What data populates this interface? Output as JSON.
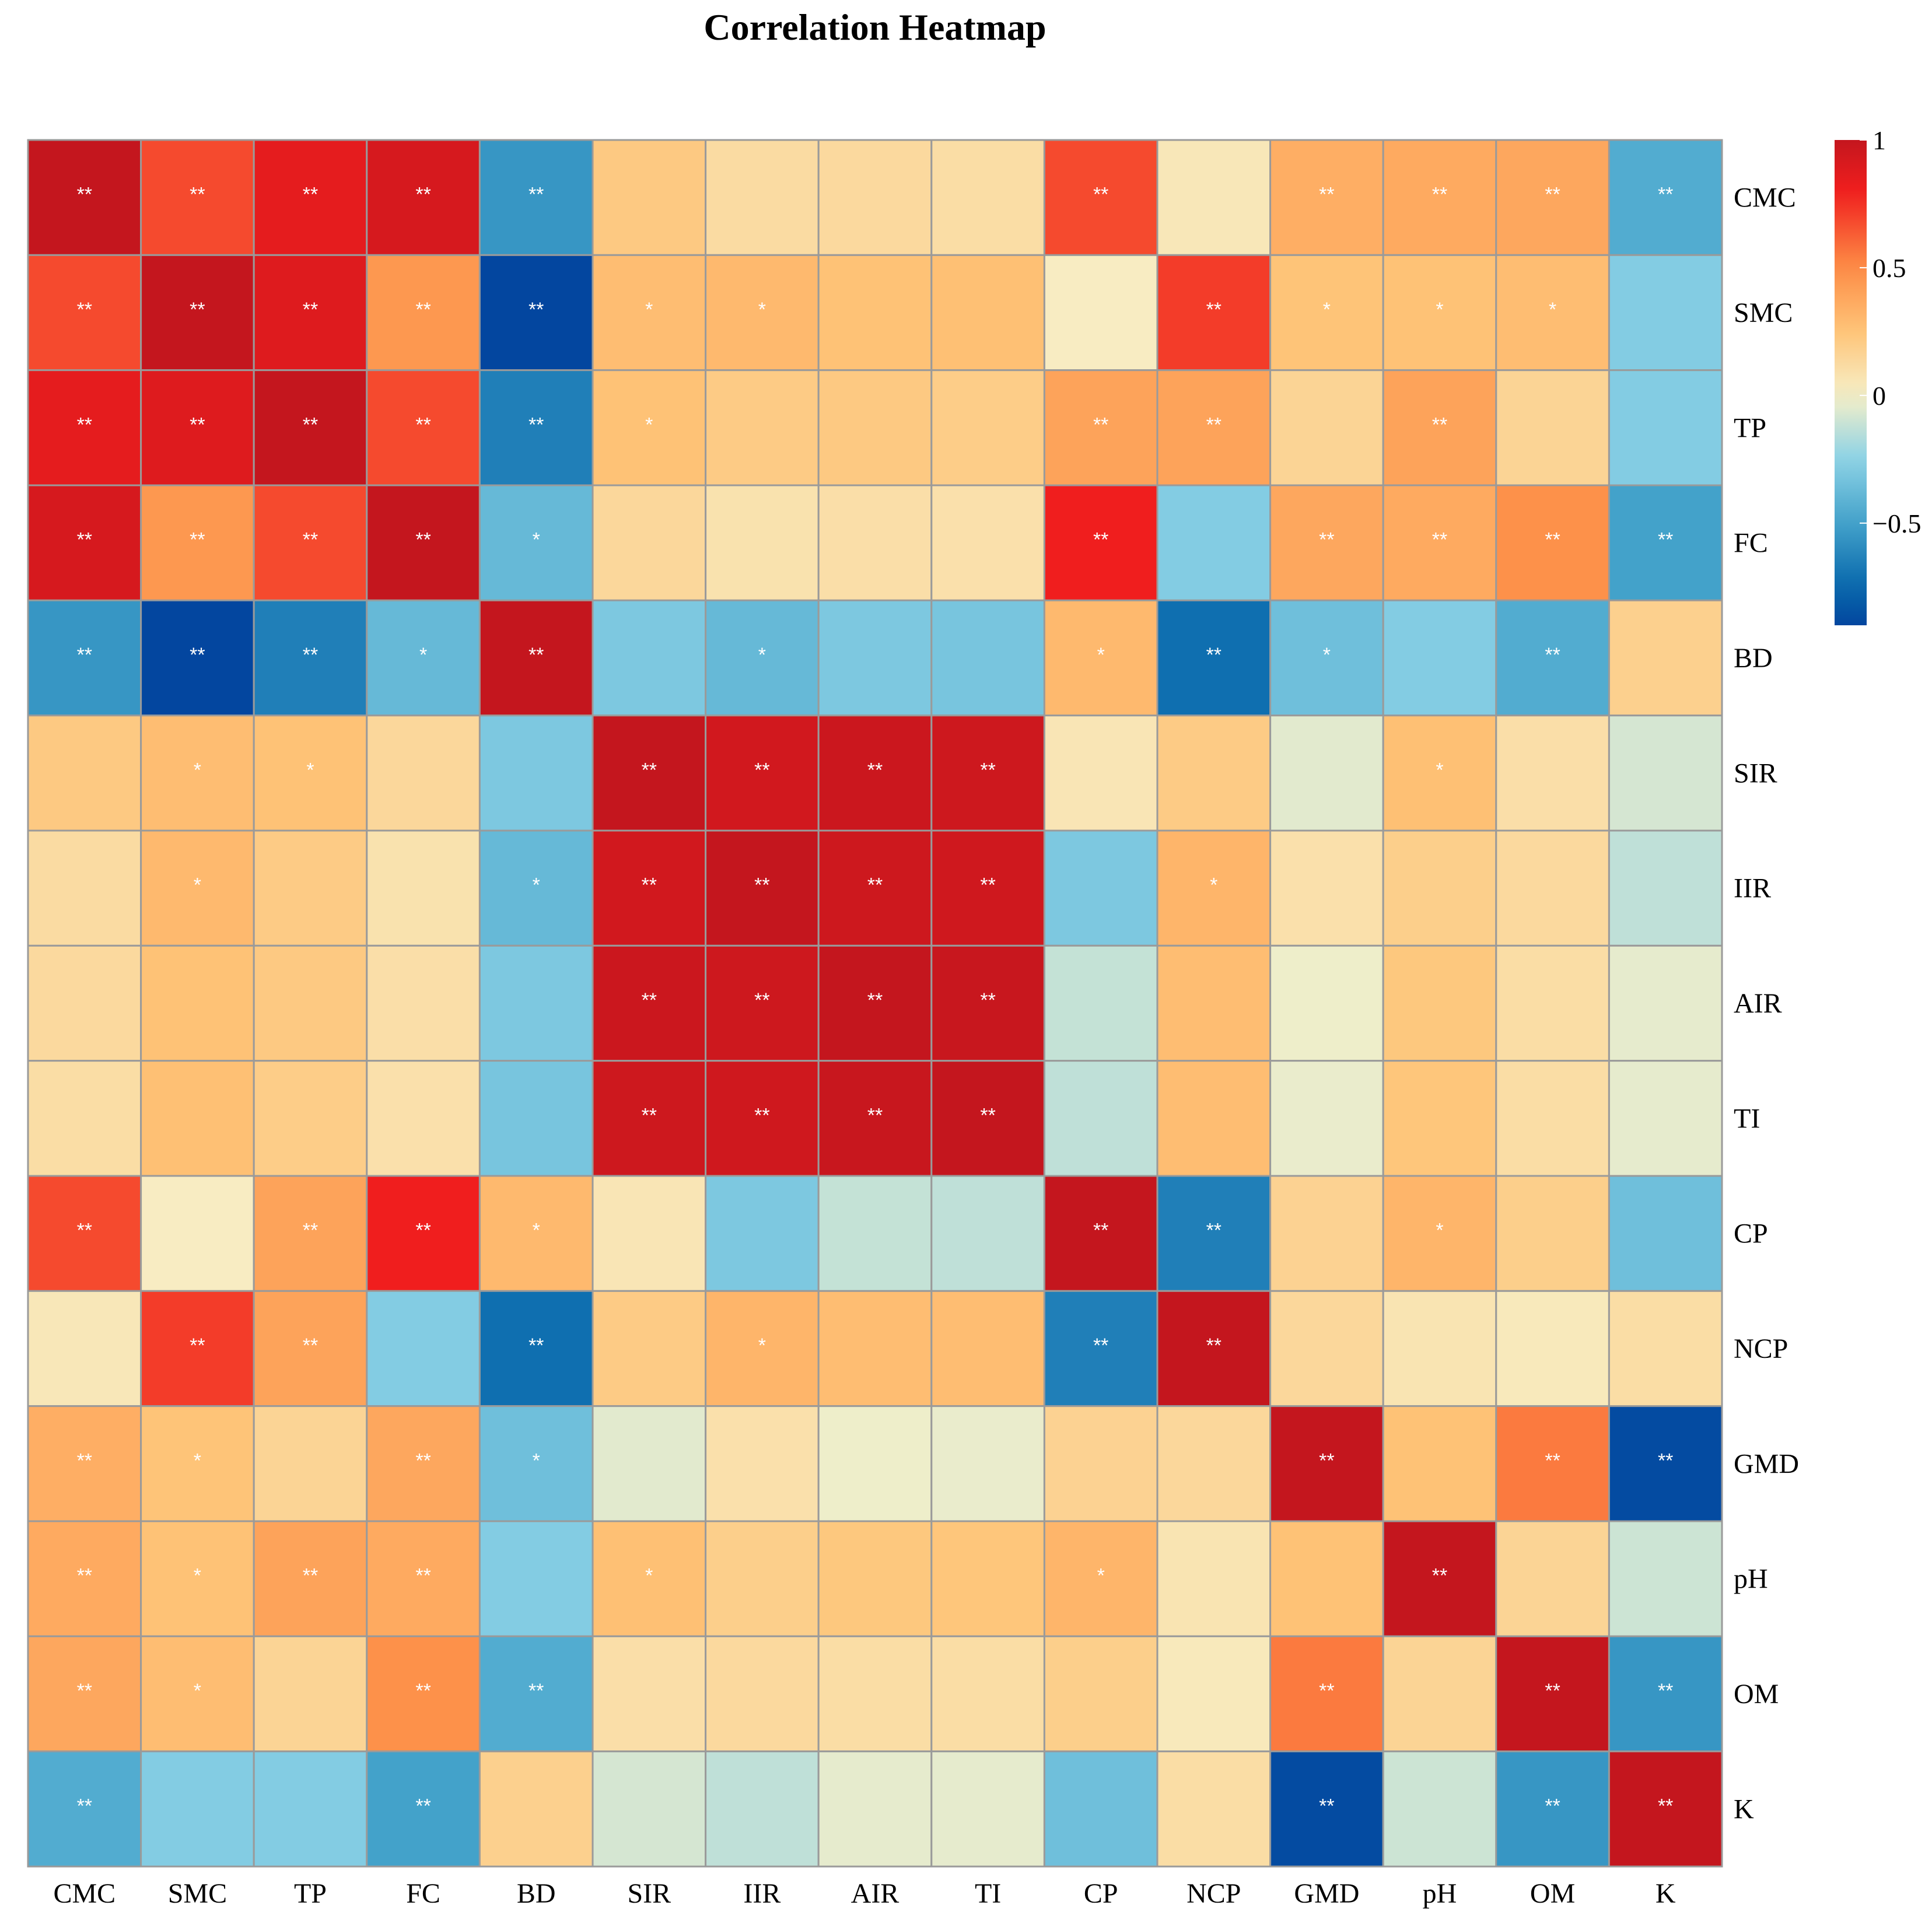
{
  "chart_data": {
    "type": "heatmap",
    "title": "Correlation Heatmap",
    "xlabel": "",
    "ylabel": "",
    "variables": [
      "CMC",
      "SMC",
      "TP",
      "FC",
      "BD",
      "SIR",
      "IIR",
      "AIR",
      "TI",
      "CP",
      "NCP",
      "GMD",
      "pH",
      "OM",
      "K"
    ],
    "color_range": [
      -0.9,
      1.0
    ],
    "colorbar_ticks": [
      {
        "value": 1,
        "label": "1"
      },
      {
        "value": 0.5,
        "label": "0.5"
      },
      {
        "value": 0,
        "label": "0"
      },
      {
        "value": -0.5,
        "label": "−0.5"
      }
    ],
    "colors": {
      "scale_low": "#003399",
      "scale_mid": "#f7f0c8",
      "scale_high": "#c8161d",
      "grid_line": "#9a9a9a",
      "significance_text": "#ffffff"
    },
    "values": [
      [
        1.0,
        0.68,
        0.85,
        0.92,
        -0.55,
        0.22,
        0.12,
        0.13,
        0.11,
        0.68,
        0.05,
        0.35,
        0.37,
        0.38,
        -0.45
      ],
      [
        0.68,
        1.0,
        0.88,
        0.45,
        -0.9,
        0.28,
        0.3,
        0.26,
        0.27,
        0.02,
        0.72,
        0.25,
        0.26,
        0.28,
        -0.28
      ],
      [
        0.85,
        0.88,
        1.0,
        0.68,
        -0.65,
        0.26,
        0.21,
        0.22,
        0.2,
        0.4,
        0.4,
        0.16,
        0.4,
        0.16,
        -0.28
      ],
      [
        0.92,
        0.45,
        0.68,
        1.0,
        -0.38,
        0.14,
        0.08,
        0.1,
        0.09,
        0.8,
        -0.28,
        0.38,
        0.37,
        0.48,
        -0.5
      ],
      [
        -0.55,
        -0.9,
        -0.65,
        -0.38,
        1.0,
        -0.3,
        -0.38,
        -0.3,
        -0.32,
        0.3,
        -0.72,
        -0.35,
        -0.28,
        -0.45,
        0.18
      ],
      [
        0.22,
        0.28,
        0.26,
        0.14,
        -0.3,
        1.0,
        0.94,
        0.97,
        0.96,
        0.06,
        0.21,
        -0.05,
        0.27,
        0.1,
        -0.08
      ],
      [
        0.12,
        0.3,
        0.21,
        0.08,
        -0.38,
        0.94,
        1.0,
        0.96,
        0.95,
        -0.3,
        0.32,
        0.09,
        0.19,
        0.13,
        -0.13
      ],
      [
        0.13,
        0.26,
        0.22,
        0.1,
        -0.3,
        0.97,
        0.96,
        1.0,
        0.98,
        -0.12,
        0.28,
        -0.02,
        0.23,
        0.11,
        -0.04
      ],
      [
        0.11,
        0.27,
        0.2,
        0.09,
        -0.32,
        0.96,
        0.95,
        0.98,
        1.0,
        -0.13,
        0.28,
        -0.03,
        0.24,
        0.11,
        -0.04
      ],
      [
        0.68,
        0.02,
        0.4,
        0.8,
        0.3,
        0.06,
        -0.3,
        -0.12,
        -0.13,
        1.0,
        -0.65,
        0.17,
        0.32,
        0.19,
        -0.35
      ],
      [
        0.05,
        0.72,
        0.4,
        -0.28,
        -0.72,
        0.21,
        0.32,
        0.28,
        0.28,
        -0.65,
        1.0,
        0.14,
        0.07,
        0.04,
        0.11
      ],
      [
        0.35,
        0.25,
        0.16,
        0.38,
        -0.35,
        -0.05,
        0.09,
        -0.02,
        -0.03,
        0.17,
        0.14,
        1.0,
        0.26,
        0.55,
        -0.88
      ],
      [
        0.37,
        0.26,
        0.4,
        0.37,
        -0.28,
        0.27,
        0.19,
        0.23,
        0.24,
        0.32,
        0.07,
        0.26,
        1.0,
        0.16,
        -0.1
      ],
      [
        0.38,
        0.28,
        0.16,
        0.48,
        -0.45,
        0.1,
        0.13,
        0.11,
        0.11,
        0.19,
        0.04,
        0.55,
        0.16,
        1.0,
        -0.55
      ],
      [
        -0.45,
        -0.28,
        -0.28,
        -0.5,
        0.18,
        -0.08,
        -0.13,
        -0.04,
        -0.04,
        -0.35,
        0.11,
        -0.88,
        -0.1,
        -0.55,
        1.0
      ]
    ],
    "significance": [
      [
        "**",
        "**",
        "**",
        "**",
        "**",
        "",
        "",
        "",
        "",
        "**",
        "",
        "**",
        "**",
        "**",
        "**"
      ],
      [
        "**",
        "**",
        "**",
        "**",
        "**",
        "*",
        "*",
        "",
        "",
        "",
        "**",
        "*",
        "*",
        "*",
        ""
      ],
      [
        "**",
        "**",
        "**",
        "**",
        "**",
        "*",
        "",
        "",
        "",
        "**",
        "**",
        "",
        "**",
        "",
        ""
      ],
      [
        "**",
        "**",
        "**",
        "**",
        "*",
        "",
        "",
        "",
        "",
        "**",
        "",
        "**",
        "**",
        "**",
        "**"
      ],
      [
        "**",
        "**",
        "**",
        "*",
        "**",
        "",
        "*",
        "",
        "",
        "*",
        "**",
        "*",
        "",
        "**",
        ""
      ],
      [
        "",
        "*",
        "*",
        "",
        "",
        "**",
        "**",
        "**",
        "**",
        "",
        "",
        "",
        "*",
        "",
        ""
      ],
      [
        "",
        "*",
        "",
        "",
        "*",
        "**",
        "**",
        "**",
        "**",
        "",
        "*",
        "",
        "",
        "",
        ""
      ],
      [
        "",
        "",
        "",
        "",
        "",
        "**",
        "**",
        "**",
        "**",
        "",
        "",
        "",
        "",
        "",
        ""
      ],
      [
        "",
        "",
        "",
        "",
        "",
        "**",
        "**",
        "**",
        "**",
        "",
        "",
        "",
        "",
        "",
        ""
      ],
      [
        "**",
        "",
        "**",
        "**",
        "*",
        "",
        "",
        "",
        "",
        "**",
        "**",
        "",
        "*",
        "",
        ""
      ],
      [
        "",
        "**",
        "**",
        "",
        "**",
        "",
        "*",
        "",
        "",
        "**",
        "**",
        "",
        "",
        "",
        ""
      ],
      [
        "**",
        "*",
        "",
        "**",
        "*",
        "",
        "",
        "",
        "",
        "",
        "",
        "**",
        "",
        "**",
        "**"
      ],
      [
        "**",
        "*",
        "**",
        "**",
        "",
        "*",
        "",
        "",
        "",
        "*",
        "",
        "",
        "**",
        "",
        ""
      ],
      [
        "**",
        "*",
        "",
        "**",
        "**",
        "",
        "",
        "",
        "",
        "",
        "",
        "**",
        "",
        "**",
        "**"
      ],
      [
        "**",
        "",
        "",
        "**",
        "",
        "",
        "",
        "",
        "",
        "",
        "",
        "**",
        "",
        "**",
        "**"
      ]
    ]
  }
}
